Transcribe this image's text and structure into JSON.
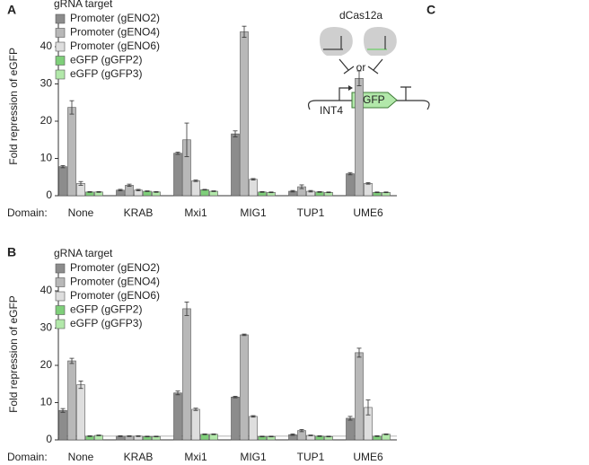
{
  "chart_data": [
    {
      "type": "bar",
      "panel": "A",
      "legend_title": "gRNA target",
      "ylabel": "Fold repression of eGFP",
      "xlabel": "Domain:",
      "categories": [
        "None",
        "KRAB",
        "Mxi1",
        "MIG1",
        "TUP1",
        "UME6"
      ],
      "ylim": [
        0,
        48
      ],
      "yticks": [
        0,
        10,
        20,
        30,
        40
      ],
      "series": [
        {
          "name": "Promoter (gENO2)",
          "color": "#8c8c8c",
          "values": [
            7.8,
            1.5,
            11.4,
            16.6,
            1.2,
            5.9
          ],
          "errors": [
            0.3,
            0.2,
            0.3,
            0.8,
            0.2,
            0.3
          ]
        },
        {
          "name": "Promoter (gENO4)",
          "color": "#b8b8b8",
          "values": [
            23.7,
            2.8,
            15.0,
            44.0,
            2.4,
            31.5
          ],
          "errors": [
            1.8,
            0.3,
            4.5,
            1.5,
            0.5,
            2.0
          ]
        },
        {
          "name": "Promoter (gENO6)",
          "color": "#dedede",
          "values": [
            3.3,
            1.5,
            4.0,
            4.4,
            1.2,
            3.3
          ],
          "errors": [
            0.5,
            0.2,
            0.2,
            0.2,
            0.2,
            0.2
          ]
        },
        {
          "name": "eGFP (gGFP2)",
          "color": "#7fcf7a",
          "values": [
            1.0,
            1.2,
            1.6,
            1.0,
            1.0,
            0.9
          ],
          "errors": [
            0.1,
            0.1,
            0.1,
            0.1,
            0.1,
            0.1
          ]
        },
        {
          "name": "eGFP (gGFP3)",
          "color": "#b2e8aa",
          "values": [
            1.0,
            1.0,
            1.2,
            0.9,
            0.9,
            0.9
          ],
          "errors": [
            0.1,
            0.1,
            0.1,
            0.1,
            0.1,
            0.1
          ]
        }
      ]
    },
    {
      "type": "bar",
      "panel": "B",
      "legend_title": "gRNA target",
      "ylabel": "Fold repression of eGFP",
      "xlabel": "Domain:",
      "categories": [
        "None",
        "KRAB",
        "Mxi1",
        "MIG1",
        "TUP1",
        "UME6"
      ],
      "ylim": [
        0,
        46
      ],
      "yticks": [
        0,
        10,
        20,
        30,
        40
      ],
      "reference_line": 1,
      "series": [
        {
          "name": "Promoter (gENO2)",
          "color": "#8c8c8c",
          "values": [
            7.9,
            1.0,
            12.6,
            11.5,
            1.4,
            5.8
          ],
          "errors": [
            0.5,
            0.1,
            0.5,
            0.2,
            0.2,
            0.5
          ]
        },
        {
          "name": "Promoter (gENO4)",
          "color": "#b8b8b8",
          "values": [
            21.2,
            1.0,
            35.2,
            28.2,
            2.5,
            23.4
          ],
          "errors": [
            0.7,
            0.1,
            1.8,
            0.2,
            0.3,
            1.2
          ]
        },
        {
          "name": "Promoter (gENO6)",
          "color": "#dedede",
          "values": [
            14.8,
            1.0,
            8.2,
            6.3,
            1.2,
            8.7
          ],
          "errors": [
            1.0,
            0.1,
            0.3,
            0.2,
            0.1,
            2.0
          ]
        },
        {
          "name": "eGFP (gGFP2)",
          "color": "#7fcf7a",
          "values": [
            1.0,
            0.9,
            1.5,
            0.9,
            1.0,
            1.0
          ],
          "errors": [
            0.1,
            0.1,
            0.1,
            0.1,
            0.1,
            0.1
          ]
        },
        {
          "name": "eGFP (gGFP3)",
          "color": "#b2e8aa",
          "values": [
            1.2,
            0.9,
            1.5,
            0.9,
            0.9,
            1.5
          ],
          "errors": [
            0.1,
            0.1,
            0.1,
            0.1,
            0.1,
            0.1
          ]
        }
      ]
    }
  ],
  "diagram": {
    "panel": "C",
    "title": "dCas12a",
    "connector": "or",
    "gene": "eGFP",
    "locus": "INT4"
  }
}
